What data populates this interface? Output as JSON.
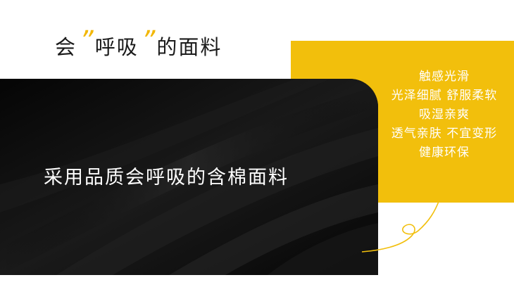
{
  "heading": {
    "part1": "会",
    "open_quote": "”",
    "part2": "呼吸",
    "close_quote": "”",
    "part3": "的面料"
  },
  "fabric_caption": "采用品质会呼吸的含棉面料",
  "features": [
    "触感光滑",
    "光泽细腻 舒服柔软",
    "吸湿亲爽",
    "透气亲肤 不宜变形",
    "健康环保"
  ],
  "colors": {
    "accent": "#F2BF0C",
    "fabric": "#0b0b0b",
    "text_dark": "#1a1a1a",
    "text_light": "#ffffff"
  }
}
